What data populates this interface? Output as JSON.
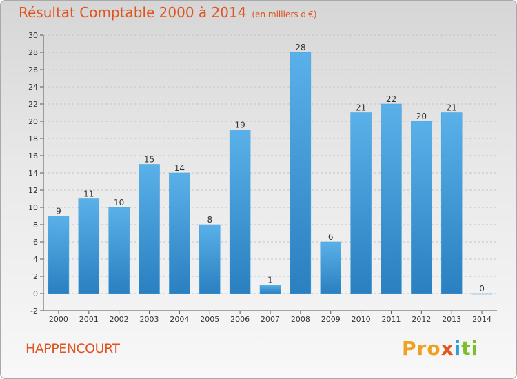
{
  "header": {
    "title": "Résultat Comptable 2000 à 2014",
    "subtitle": "(en milliers d'€)"
  },
  "footer": {
    "commune": "HAPPENCOURT",
    "logo": [
      "Pro",
      "x",
      "i",
      "ti"
    ]
  },
  "colors": {
    "title": "#e0531e",
    "bar_light": "#5ab0e8",
    "bar_dark": "#2a80c0",
    "grid": "#c4c4c4"
  },
  "chart_data": {
    "type": "bar",
    "title": "Résultat Comptable 2000 à 2014",
    "subtitle": "(en milliers d'€)",
    "xlabel": "",
    "ylabel": "",
    "categories": [
      "2000",
      "2001",
      "2002",
      "2003",
      "2004",
      "2005",
      "2006",
      "2007",
      "2008",
      "2009",
      "2010",
      "2011",
      "2012",
      "2013",
      "2014"
    ],
    "values": [
      9,
      11,
      10,
      15,
      14,
      8,
      19,
      1,
      28,
      6,
      21,
      22,
      20,
      21,
      0
    ],
    "ylim": [
      -2,
      30
    ],
    "yticks": [
      -2,
      0,
      2,
      4,
      6,
      8,
      10,
      12,
      14,
      16,
      18,
      20,
      22,
      24,
      26,
      28,
      30
    ],
    "grid": true,
    "legend": "none"
  }
}
